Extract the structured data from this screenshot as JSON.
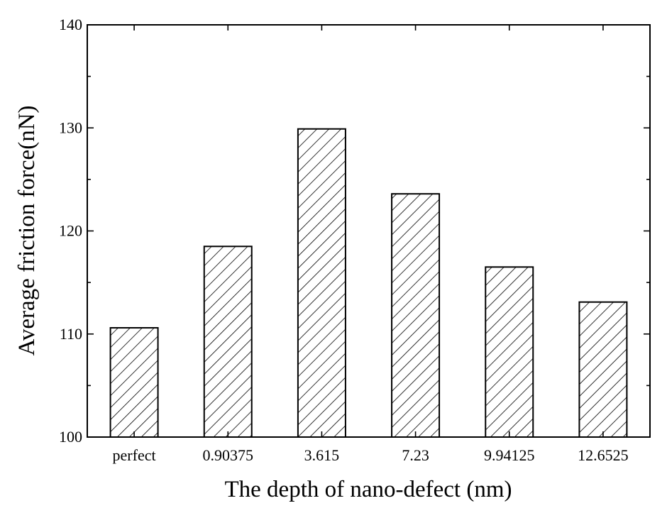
{
  "chart_data": {
    "type": "bar",
    "title": "",
    "xlabel": "The depth of nano-defect (nm)",
    "ylabel": "Average friction force(nN)",
    "categories": [
      "perfect",
      "0.90375",
      "3.615",
      "7.23",
      "9.94125",
      "12.6525"
    ],
    "values": [
      110.6,
      118.5,
      129.9,
      123.6,
      116.5,
      113.1
    ],
    "ylim": [
      100,
      140
    ],
    "yticks": [
      "100",
      "110",
      "120",
      "130",
      "140"
    ],
    "minor_tick_step": 5,
    "grid": false,
    "legend": "none",
    "bar_fill": "diagonal-hatch",
    "colors": {
      "bar_stroke": "#000000",
      "hatch": "#000000",
      "background": "#ffffff"
    }
  }
}
